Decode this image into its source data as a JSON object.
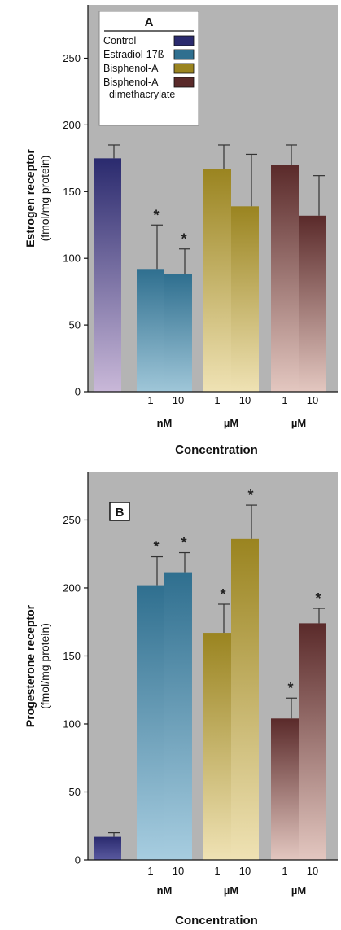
{
  "chart_data": [
    {
      "type": "bar",
      "panel_label": "A",
      "ylabel": "Estrogen receptor",
      "ylabel_units": "(fmol/mg protein)",
      "xlabel": "Concentration",
      "ylim": [
        0,
        290
      ],
      "yticks": [
        0,
        50,
        100,
        150,
        200,
        250
      ],
      "legend": {
        "placement": "top-left",
        "entries": [
          {
            "name": "Control",
            "color": "#2a2a6e"
          },
          {
            "name": "Estradiol-17ß",
            "color": "#2f6f8f"
          },
          {
            "name": "Bisphenol-A",
            "color": "#9a8420"
          },
          {
            "name": "Bisphenol-A",
            "color": "#5a2a2a",
            "extra": "dimethacrylate"
          }
        ]
      },
      "groups": [
        {
          "series": "Control",
          "unit": "",
          "top": "#2a2a6e",
          "bottom": "#c9b8d8",
          "bars": [
            {
              "label": "",
              "value": 175,
              "error": 10,
              "significant": false
            }
          ]
        },
        {
          "series": "Estradiol-17ß",
          "unit": "nM",
          "top": "#2f6f8f",
          "bottom": "#9fc6d8",
          "bars": [
            {
              "label": "1",
              "value": 92,
              "error": 33,
              "significant": true
            },
            {
              "label": "10",
              "value": 88,
              "error": 19,
              "significant": true
            }
          ]
        },
        {
          "series": "Bisphenol-A",
          "unit": "µM",
          "top": "#9a8420",
          "bottom": "#efe2b4",
          "bars": [
            {
              "label": "1",
              "value": 167,
              "error": 18,
              "significant": false
            },
            {
              "label": "10",
              "value": 139,
              "error": 39,
              "significant": false
            }
          ]
        },
        {
          "series": "Bisphenol-A dimethacrylate",
          "unit": "µM",
          "top": "#5a2a2a",
          "bottom": "#e3c7c0",
          "bars": [
            {
              "label": "1",
              "value": 170,
              "error": 15,
              "significant": false
            },
            {
              "label": "10",
              "value": 132,
              "error": 30,
              "significant": false
            }
          ]
        }
      ],
      "significance_marker": "*"
    },
    {
      "type": "bar",
      "panel_label": "B",
      "ylabel": "Progesterone receptor",
      "ylabel_units": "(fmol/mg protein)",
      "xlabel": "Concentration",
      "ylim": [
        0,
        285
      ],
      "yticks": [
        0,
        50,
        100,
        150,
        200,
        250
      ],
      "groups": [
        {
          "series": "Control",
          "unit": "",
          "top": "#2a2a6e",
          "bottom": "#5a5aa0",
          "bars": [
            {
              "label": "",
              "value": 17,
              "error": 3,
              "significant": false
            }
          ]
        },
        {
          "series": "Estradiol-17ß",
          "unit": "nM",
          "top": "#2f6f8f",
          "bottom": "#a7cde0",
          "bars": [
            {
              "label": "1",
              "value": 202,
              "error": 21,
              "significant": true
            },
            {
              "label": "10",
              "value": 211,
              "error": 15,
              "significant": true
            }
          ]
        },
        {
          "series": "Bisphenol-A",
          "unit": "µM",
          "top": "#9a8420",
          "bottom": "#efe2b4",
          "bars": [
            {
              "label": "1",
              "value": 167,
              "error": 21,
              "significant": true
            },
            {
              "label": "10",
              "value": 236,
              "error": 25,
              "significant": true
            }
          ]
        },
        {
          "series": "Bisphenol-A dimethacrylate",
          "unit": "µM",
          "top": "#5a2a2a",
          "bottom": "#e3c7c0",
          "bars": [
            {
              "label": "1",
              "value": 104,
              "error": 15,
              "significant": true
            },
            {
              "label": "10",
              "value": 174,
              "error": 11,
              "significant": true
            }
          ]
        }
      ],
      "significance_marker": "*"
    }
  ]
}
